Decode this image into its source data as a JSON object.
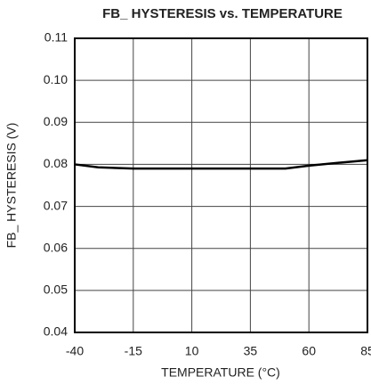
{
  "chart_data": {
    "type": "line",
    "title": "FB_ HYSTERESIS vs. TEMPERATURE",
    "xlabel": "TEMPERATURE (°C)",
    "ylabel": "FB_ HYSTERESIS (V)",
    "x": [
      -40,
      -30,
      -15,
      0,
      10,
      25,
      35,
      50,
      60,
      75,
      85
    ],
    "values": [
      0.08,
      0.0793,
      0.079,
      0.079,
      0.079,
      0.079,
      0.079,
      0.079,
      0.0797,
      0.0805,
      0.081
    ],
    "color": "#000000",
    "xlim": [
      -40,
      85
    ],
    "xticks": [
      -40,
      -15,
      10,
      35,
      60,
      85
    ],
    "ylim": [
      0.04,
      0.11
    ],
    "yticks": [
      0.04,
      0.05,
      0.06,
      0.07,
      0.08,
      0.09,
      {
        "value": 0.1,
        "label": "0.10"
      },
      0.11
    ],
    "grid": true
  }
}
